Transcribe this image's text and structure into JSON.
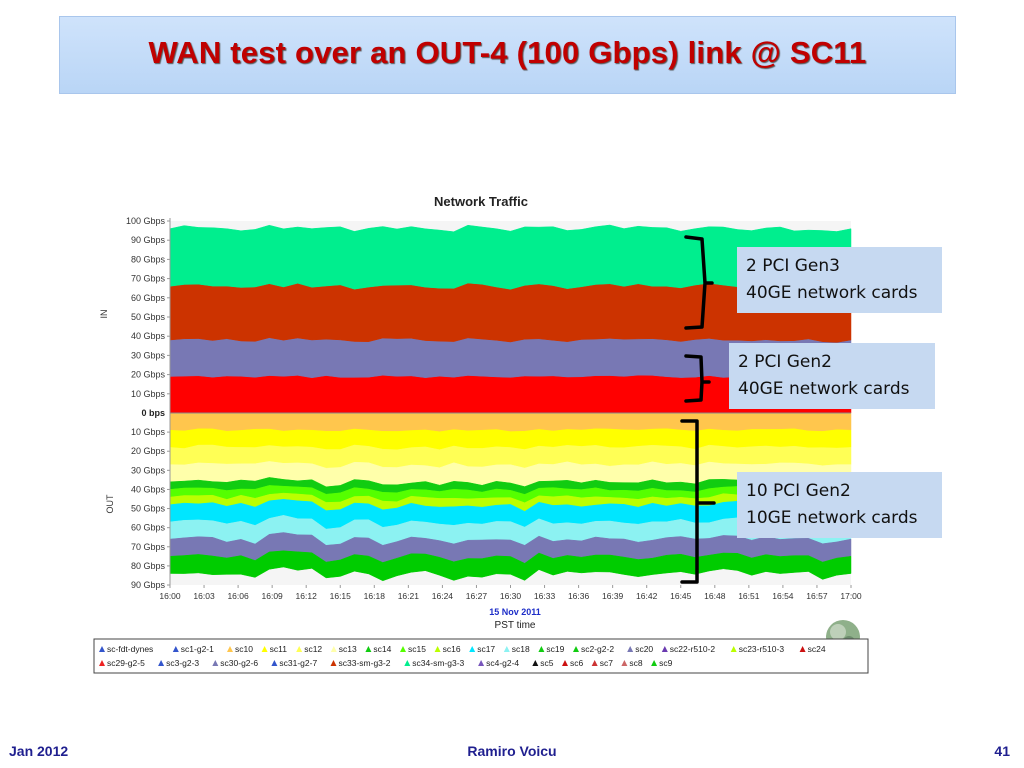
{
  "slide": {
    "title": "WAN test over an OUT-4 (100 Gbps) link @ SC11",
    "footer_left": "Jan 2012",
    "footer_center": "Ramiro Voicu",
    "footer_right": "41"
  },
  "callouts": [
    {
      "line1": "2 PCI Gen3",
      "line2": "40GE network cards"
    },
    {
      "line1": "2 PCI Gen2",
      "line2": "40GE network cards"
    },
    {
      "line1": "10 PCI Gen2",
      "line2": "10GE network cards"
    }
  ],
  "chart_data": {
    "type": "area",
    "title": "Network Traffic",
    "xlabel": "PST time",
    "xdate": "15 Nov 2011",
    "ylabel_in": "IN",
    "ylabel_out": "OUT",
    "x": [
      "16:00",
      "16:03",
      "16:06",
      "16:09",
      "16:12",
      "16:15",
      "16:18",
      "16:21",
      "16:24",
      "16:27",
      "16:30",
      "16:33",
      "16:36",
      "16:39",
      "16:42",
      "16:45",
      "16:48",
      "16:51",
      "16:54",
      "16:57",
      "17:00"
    ],
    "ylim_in": [
      0,
      100
    ],
    "ylim_out": [
      0,
      90
    ],
    "yunit": "Gbps",
    "y_ticks_in": [
      "100 Gbps",
      "90 Gbps",
      "80 Gbps",
      "70 Gbps",
      "60 Gbps",
      "50 Gbps",
      "40 Gbps",
      "30 Gbps",
      "20 Gbps",
      "10 Gbps"
    ],
    "y_tick_zero": "0 bps",
    "y_ticks_out": [
      "10 Gbps",
      "20 Gbps",
      "30 Gbps",
      "40 Gbps",
      "50 Gbps",
      "60 Gbps",
      "70 Gbps",
      "80 Gbps",
      "90 Gbps"
    ],
    "stack_in": [
      {
        "color": "#ff0000",
        "value": 19
      },
      {
        "color": "#7878b4",
        "value": 19
      },
      {
        "color": "#cc3300",
        "value": 28
      },
      {
        "color": "#00ee8e",
        "value": 30
      }
    ],
    "stack_out": [
      {
        "color": "#ffc64d",
        "value": 9
      },
      {
        "color": "#ffff00",
        "value": 9
      },
      {
        "color": "#ffff55",
        "value": 9
      },
      {
        "color": "#ffffaa",
        "value": 9
      },
      {
        "color": "#11cc11",
        "value": 4
      },
      {
        "color": "#55ff00",
        "value": 4
      },
      {
        "color": "#bbff00",
        "value": 4
      },
      {
        "color": "#00e6ff",
        "value": 9
      },
      {
        "color": "#8cf2f2",
        "value": 9
      },
      {
        "color": "#7878b4",
        "value": 9
      },
      {
        "color": "#00cc00",
        "value": 9
      }
    ],
    "legend_placement": "bottom",
    "legend": [
      {
        "name": "sc-fdt-dynes",
        "color": "#3355cc"
      },
      {
        "name": "sc1-g2-1",
        "color": "#3355cc"
      },
      {
        "name": "sc10",
        "color": "#ffc64d"
      },
      {
        "name": "sc11",
        "color": "#ffff00"
      },
      {
        "name": "sc12",
        "color": "#ffff55"
      },
      {
        "name": "sc13",
        "color": "#ffffaa"
      },
      {
        "name": "sc14",
        "color": "#11cc11"
      },
      {
        "name": "sc15",
        "color": "#55ff00"
      },
      {
        "name": "sc16",
        "color": "#bbff00"
      },
      {
        "name": "sc17",
        "color": "#00e6ff"
      },
      {
        "name": "sc18",
        "color": "#8cf2f2"
      },
      {
        "name": "sc19",
        "color": "#11cc11"
      },
      {
        "name": "sc2-g2-2",
        "color": "#11cc11"
      },
      {
        "name": "sc20",
        "color": "#7878b4"
      },
      {
        "name": "sc22-r510-2",
        "color": "#6a3ab0"
      },
      {
        "name": "sc23-r510-3",
        "color": "#bbff00"
      },
      {
        "name": "sc24",
        "color": "#cc1111"
      },
      {
        "name": "sc29-g2-5",
        "color": "#ee2222"
      },
      {
        "name": "sc3-g2-3",
        "color": "#3355cc"
      },
      {
        "name": "sc30-g2-6",
        "color": "#7878b4"
      },
      {
        "name": "sc31-g2-7",
        "color": "#3355cc"
      },
      {
        "name": "sc33-sm-g3-2",
        "color": "#cc3300"
      },
      {
        "name": "sc34-sm-g3-3",
        "color": "#00ee8e"
      },
      {
        "name": "sc4-g2-4",
        "color": "#7755bb"
      },
      {
        "name": "sc5",
        "color": "#111111"
      },
      {
        "name": "sc6",
        "color": "#cc1111"
      },
      {
        "name": "sc7",
        "color": "#cc3333"
      },
      {
        "name": "sc8",
        "color": "#cc6666"
      },
      {
        "name": "sc9",
        "color": "#11cc11"
      }
    ]
  }
}
